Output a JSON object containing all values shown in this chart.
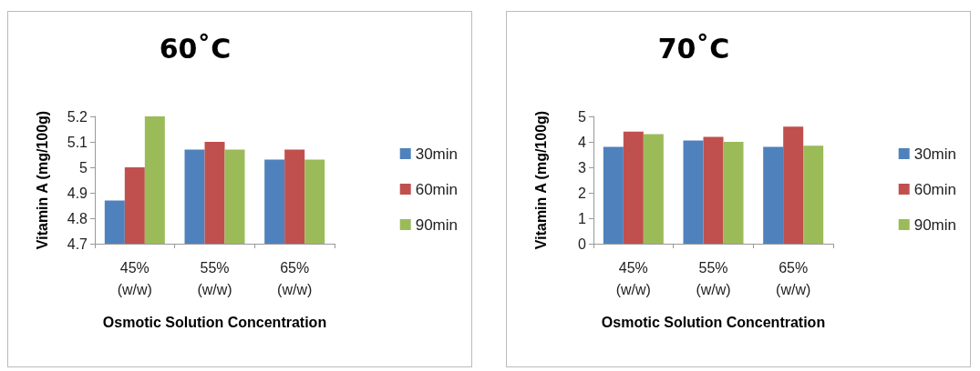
{
  "chart_data": [
    {
      "type": "bar",
      "title": "60˚C",
      "xlabel": "Osmotic Solution Concentration",
      "ylabel": "Vitamin A (mg/100g)",
      "categories": [
        "45%\n(w/w)",
        "55%\n(w/w)",
        "65%\n(w/w)"
      ],
      "series": [
        {
          "name": "30min",
          "color": "#4f81bd",
          "values": [
            4.87,
            5.07,
            5.03
          ]
        },
        {
          "name": "60min",
          "color": "#c0504d",
          "values": [
            5.0,
            5.1,
            5.07
          ]
        },
        {
          "name": "90min",
          "color": "#9bbb59",
          "values": [
            5.2,
            5.07,
            5.03
          ]
        }
      ],
      "ylim": [
        4.7,
        5.2
      ],
      "yticks": [
        4.7,
        4.8,
        4.9,
        5,
        5.1,
        5.2
      ],
      "grid": false,
      "legend": "right"
    },
    {
      "type": "bar",
      "title": "70˚C",
      "xlabel": "Osmotic Solution Concentration",
      "ylabel": "Vitamin A (mg/100g)",
      "categories": [
        "45%\n(w/w)",
        "55%\n(w/w)",
        "65%\n(w/w)"
      ],
      "series": [
        {
          "name": "30min",
          "color": "#4f81bd",
          "values": [
            3.8,
            4.05,
            3.8
          ]
        },
        {
          "name": "60min",
          "color": "#c0504d",
          "values": [
            4.4,
            4.2,
            4.6
          ]
        },
        {
          "name": "90min",
          "color": "#9bbb59",
          "values": [
            4.3,
            4.0,
            3.85
          ]
        }
      ],
      "ylim": [
        0,
        5
      ],
      "yticks": [
        0,
        1,
        2,
        3,
        4,
        5
      ],
      "grid": false,
      "legend": "right"
    }
  ]
}
